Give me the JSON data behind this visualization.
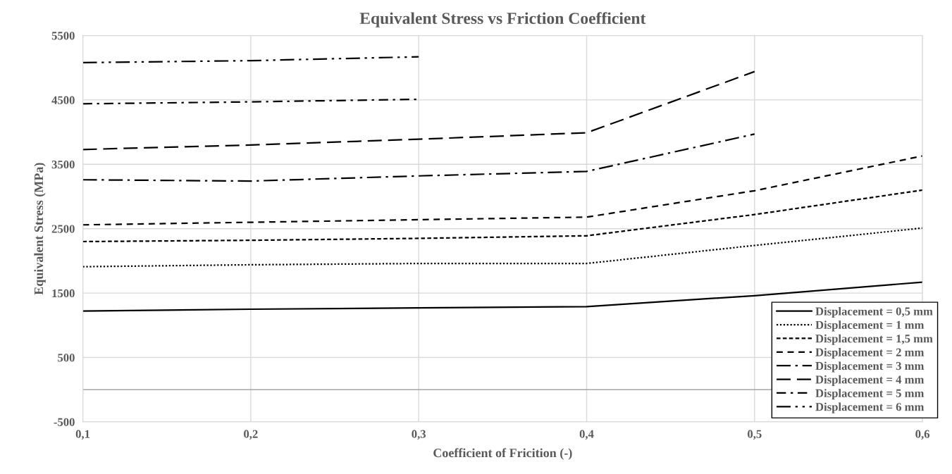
{
  "chart_data": {
    "type": "line",
    "title": "Equivalent Stress vs Friction Coefficient",
    "xlabel": "Coefficient of Fricition (-)",
    "ylabel": "Equivalent Stress (MPa)",
    "x": [
      0.1,
      0.2,
      0.3,
      0.4,
      0.5,
      0.6
    ],
    "series": [
      {
        "name": "Displacement = 0,5 mm",
        "color": "#000000",
        "line_style": "solid",
        "values": [
          1220,
          1250,
          1270,
          1290,
          1460,
          1670
        ]
      },
      {
        "name": "Displacement = 1 mm",
        "color": "#000000",
        "line_style": "dotted",
        "values": [
          1910,
          1940,
          1960,
          1960,
          2240,
          2510
        ]
      },
      {
        "name": "Displacement = 1,5 mm",
        "color": "#000000",
        "line_style": "shortdash",
        "values": [
          2300,
          2320,
          2350,
          2390,
          2720,
          3100
        ]
      },
      {
        "name": "Displacement = 2 mm",
        "color": "#000000",
        "line_style": "dashed",
        "values": [
          2560,
          2600,
          2640,
          2680,
          3090,
          3630
        ]
      },
      {
        "name": "Displacement = 3 mm",
        "color": "#000000",
        "line_style": "longdashdot",
        "values": [
          3260,
          3240,
          3320,
          3390,
          3970,
          null
        ]
      },
      {
        "name": "Displacement = 4 mm",
        "color": "#000000",
        "line_style": "longdash",
        "values": [
          3730,
          3800,
          3890,
          3990,
          4940,
          null
        ]
      },
      {
        "name": "Displacement = 5 mm",
        "color": "#000000",
        "line_style": "dashdot",
        "values": [
          4440,
          4470,
          4510,
          null,
          null,
          null
        ]
      },
      {
        "name": "Displacement = 6 mm",
        "color": "#000000",
        "line_style": "dashdotdot",
        "values": [
          5080,
          5110,
          5170,
          null,
          null,
          null
        ]
      }
    ],
    "xlim": [
      0.1,
      0.6
    ],
    "xticks": [
      {
        "value": 0.1,
        "label": "0,1"
      },
      {
        "value": 0.2,
        "label": "0,2"
      },
      {
        "value": 0.3,
        "label": "0,3"
      },
      {
        "value": 0.4,
        "label": "0,4"
      },
      {
        "value": 0.5,
        "label": "0,5"
      },
      {
        "value": 0.6,
        "label": "0,6"
      }
    ],
    "ylim": [
      -500,
      5500
    ],
    "yticks": [
      -500,
      500,
      1500,
      2500,
      3500,
      4500,
      5500
    ],
    "ref_lines": [
      {
        "axis": "y",
        "value": 0,
        "color": "#a6a6a6"
      }
    ],
    "grid": true,
    "legend": "bottom right",
    "marker": "none"
  }
}
